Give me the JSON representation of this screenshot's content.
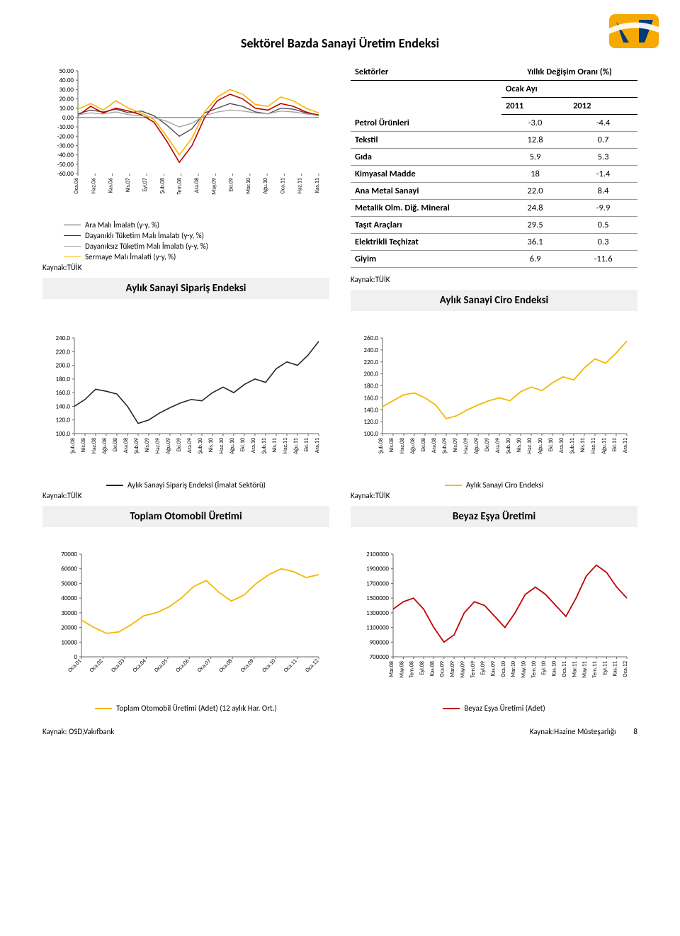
{
  "page_title": "Sektörel Bazda Sanayi Üretim Endeksi",
  "logo_colors": {
    "bg": "#f6a900",
    "v": "#003a7a",
    "sash": "#ffffff"
  },
  "source_label": "Kaynak:TÜİK",
  "footer_left": "Kaynak: OSD,Vakıfbank",
  "footer_right_source": "Kaynak:Hazine Müsteşarlığı",
  "page_number": "8",
  "chart1": {
    "type": "line",
    "ylim": [
      -60,
      50
    ],
    "yticks": [
      "50.00",
      "40.00",
      "30.00",
      "20.00",
      "10.00",
      "0.00",
      "-10.00",
      "-20.00",
      "-30.00",
      "-40.00",
      "-50.00",
      "-60.00"
    ],
    "xlabels": [
      "Oca.06",
      "Haz.06",
      "Kas.06",
      "Nis.07",
      "Eyl.07",
      "Şub.08",
      "Tem.08",
      "Ara.08",
      "May.09",
      "Eki.09",
      "Mar.10",
      "Ağu.10",
      "Oca.11",
      "Haz.11",
      "Kas.11"
    ],
    "bg": "#ffffff",
    "grid": "none",
    "axis_color": "#666666",
    "font_size": 8,
    "series": [
      {
        "name": "Ara Malı İmalatı (y-y, %)",
        "color": "#4d4d4d",
        "width": 1.4,
        "values": [
          4,
          8,
          6,
          9,
          5,
          7,
          2,
          -8,
          -20,
          -12,
          5,
          10,
          15,
          12,
          6,
          4,
          10,
          9,
          5,
          3
        ]
      },
      {
        "name": "Dayanıklı Tüketim Malı İmalatı (y-y, %)",
        "color": "#c00000",
        "width": 1.6,
        "values": [
          2,
          12,
          5,
          10,
          7,
          3,
          -5,
          -25,
          -48,
          -30,
          0,
          18,
          25,
          20,
          10,
          8,
          15,
          12,
          6,
          2
        ]
      },
      {
        "name": "Dayanıksız Tüketim Malı İmalatı (y-y, %)",
        "color": "#a6a6a6",
        "width": 1.4,
        "values": [
          3,
          5,
          4,
          6,
          3,
          2,
          0,
          -4,
          -10,
          -6,
          2,
          6,
          8,
          7,
          5,
          4,
          7,
          6,
          4,
          2
        ]
      },
      {
        "name": "Sermaye Malı İmalati (y-y, %)",
        "color": "#f2b800",
        "width": 1.6,
        "values": [
          9,
          15,
          8,
          18,
          10,
          5,
          -2,
          -20,
          -40,
          -22,
          6,
          22,
          30,
          25,
          14,
          12,
          22,
          18,
          10,
          5
        ]
      }
    ]
  },
  "sector_table": {
    "header_left": "Sektörler",
    "header_right": "Yıllık Değişim Oranı (%)",
    "subheader": "Ocak Ayı",
    "years": [
      "2011",
      "2012"
    ],
    "rows": [
      {
        "name": "Petrol Ürünleri",
        "v1": "-3.0",
        "v2": "-4.4"
      },
      {
        "name": "Tekstil",
        "v1": "12.8",
        "v2": "0.7"
      },
      {
        "name": "Gıda",
        "v1": "5.9",
        "v2": "5.3"
      },
      {
        "name": "Kimyasal Madde",
        "v1": "18",
        "v2": "-1.4"
      },
      {
        "name": "Ana Metal Sanayi",
        "v1": "22.0",
        "v2": "8.4"
      },
      {
        "name": "Metalik Olm. Diğ. Mineral",
        "v1": "24.8",
        "v2": "-9.9"
      },
      {
        "name": "Taşıt Araçları",
        "v1": "29.5",
        "v2": "0.5"
      },
      {
        "name": "Elektrikli Teçhizat",
        "v1": "36.1",
        "v2": "0.3"
      },
      {
        "name": "Giyim",
        "v1": "6.9",
        "v2": "-11.6"
      }
    ]
  },
  "panel_siparis_title": "Aylık Sanayi Sipariş Endeksi",
  "panel_ciro_title": "Aylık Sanayi Ciro Endeksi",
  "chart_siparis": {
    "type": "line",
    "color": "#262626",
    "width": 1.6,
    "bg": "#ffffff",
    "ylim": [
      100,
      240
    ],
    "yticks": [
      "240.0",
      "220.0",
      "200.0",
      "180.0",
      "160.0",
      "140.0",
      "120.0",
      "100.0"
    ],
    "xlabels": [
      "Şub.08",
      "Nis.08",
      "Haz.08",
      "Ağu.08",
      "Eki.08",
      "Ara.08",
      "Şub.09",
      "Nis.09",
      "Haz.09",
      "Ağu.09",
      "Eki.09",
      "Ara.09",
      "Şub.10",
      "Nis.10",
      "Haz.10",
      "Ağu.10",
      "Eki.10",
      "Ara.10",
      "Şub.11",
      "Nis.11",
      "Haz.11",
      "Ağu.11",
      "Eki.11",
      "Ara.11"
    ],
    "values": [
      140,
      150,
      165,
      162,
      158,
      140,
      115,
      120,
      130,
      138,
      145,
      150,
      148,
      160,
      168,
      160,
      172,
      180,
      175,
      195,
      205,
      200,
      215,
      235
    ],
    "legend": "Aylık Sanayi Sipariş Endeksi (İmalat Sektörü)"
  },
  "chart_ciro": {
    "type": "line",
    "color": "#f2b800",
    "width": 1.8,
    "bg": "#ffffff",
    "ylim": [
      100,
      260
    ],
    "yticks": [
      "260.0",
      "240.0",
      "220.0",
      "200.0",
      "180.0",
      "160.0",
      "140.0",
      "120.0",
      "100.0"
    ],
    "xlabels": [
      "Şub.08",
      "Nis.08",
      "Haz.08",
      "Ağu.08",
      "Eki.08",
      "Ara.08",
      "Şub.09",
      "Nis.09",
      "Haz.09",
      "Ağu.09",
      "Eki.09",
      "Ara.09",
      "Şub.10",
      "Nis.10",
      "Haz.10",
      "Ağu.10",
      "Eki.10",
      "Ara.10",
      "Şub.11",
      "Nis.11",
      "Haz.11",
      "Ağu.11",
      "Eki.11",
      "Ara.11"
    ],
    "values": [
      145,
      155,
      165,
      168,
      160,
      148,
      125,
      130,
      140,
      148,
      155,
      160,
      155,
      170,
      178,
      172,
      185,
      195,
      190,
      210,
      225,
      218,
      235,
      255
    ],
    "legend": "Aylık Sanayi Ciro Endeksi"
  },
  "panel_oto_title": "Toplam Otomobil Üretimi",
  "panel_beyaz_title": "Beyaz Eşya Üretimi",
  "chart_oto": {
    "type": "line",
    "color": "#f2b800",
    "width": 1.8,
    "bg": "#ffffff",
    "ylim": [
      0,
      70000
    ],
    "yticks": [
      "70000",
      "60000",
      "50000",
      "40000",
      "30000",
      "20000",
      "10000",
      "0"
    ],
    "xlabels": [
      "Oca.01",
      "Oca.02",
      "Oca.03",
      "Oca.04",
      "Oca.05",
      "Oca.06",
      "Oca.07",
      "Oca.08",
      "Oca.09",
      "Oca.10",
      "Oca.11",
      "Oca.12"
    ],
    "values": [
      25000,
      20000,
      16000,
      17000,
      22000,
      28000,
      30000,
      34000,
      40000,
      48000,
      52000,
      44000,
      38000,
      42000,
      50000,
      56000,
      60000,
      58000,
      54000,
      56000
    ],
    "legend": "Toplam Otomobil Üretimi  (Adet) (12 aylık Har. Ort.)"
  },
  "chart_beyaz": {
    "type": "line",
    "color": "#c00000",
    "width": 1.8,
    "bg": "#ffffff",
    "ylim": [
      700000,
      2100000
    ],
    "yticks": [
      "2100000",
      "1900000",
      "1700000",
      "1500000",
      "1300000",
      "1100000",
      "900000",
      "700000"
    ],
    "xlabels": [
      "Mar.08",
      "May.08",
      "Tem.08",
      "Eyl.08",
      "Kas.08",
      "Oca.09",
      "Mar.09",
      "May.09",
      "Tem.09",
      "Eyl.09",
      "Kas.09",
      "Oca.10",
      "Mar.10",
      "May.10",
      "Tem.10",
      "Eyl.10",
      "Kas.10",
      "Oca.11",
      "Mar.11",
      "May.11",
      "Tem.11",
      "Eyl.11",
      "Kas.11",
      "Oca.12"
    ],
    "values": [
      1350000,
      1450000,
      1500000,
      1350000,
      1100000,
      900000,
      1000000,
      1300000,
      1450000,
      1400000,
      1250000,
      1100000,
      1300000,
      1550000,
      1650000,
      1550000,
      1400000,
      1250000,
      1500000,
      1800000,
      1950000,
      1850000,
      1650000,
      1500000
    ],
    "legend": "Beyaz Eşya Üretimi (Adet)"
  }
}
